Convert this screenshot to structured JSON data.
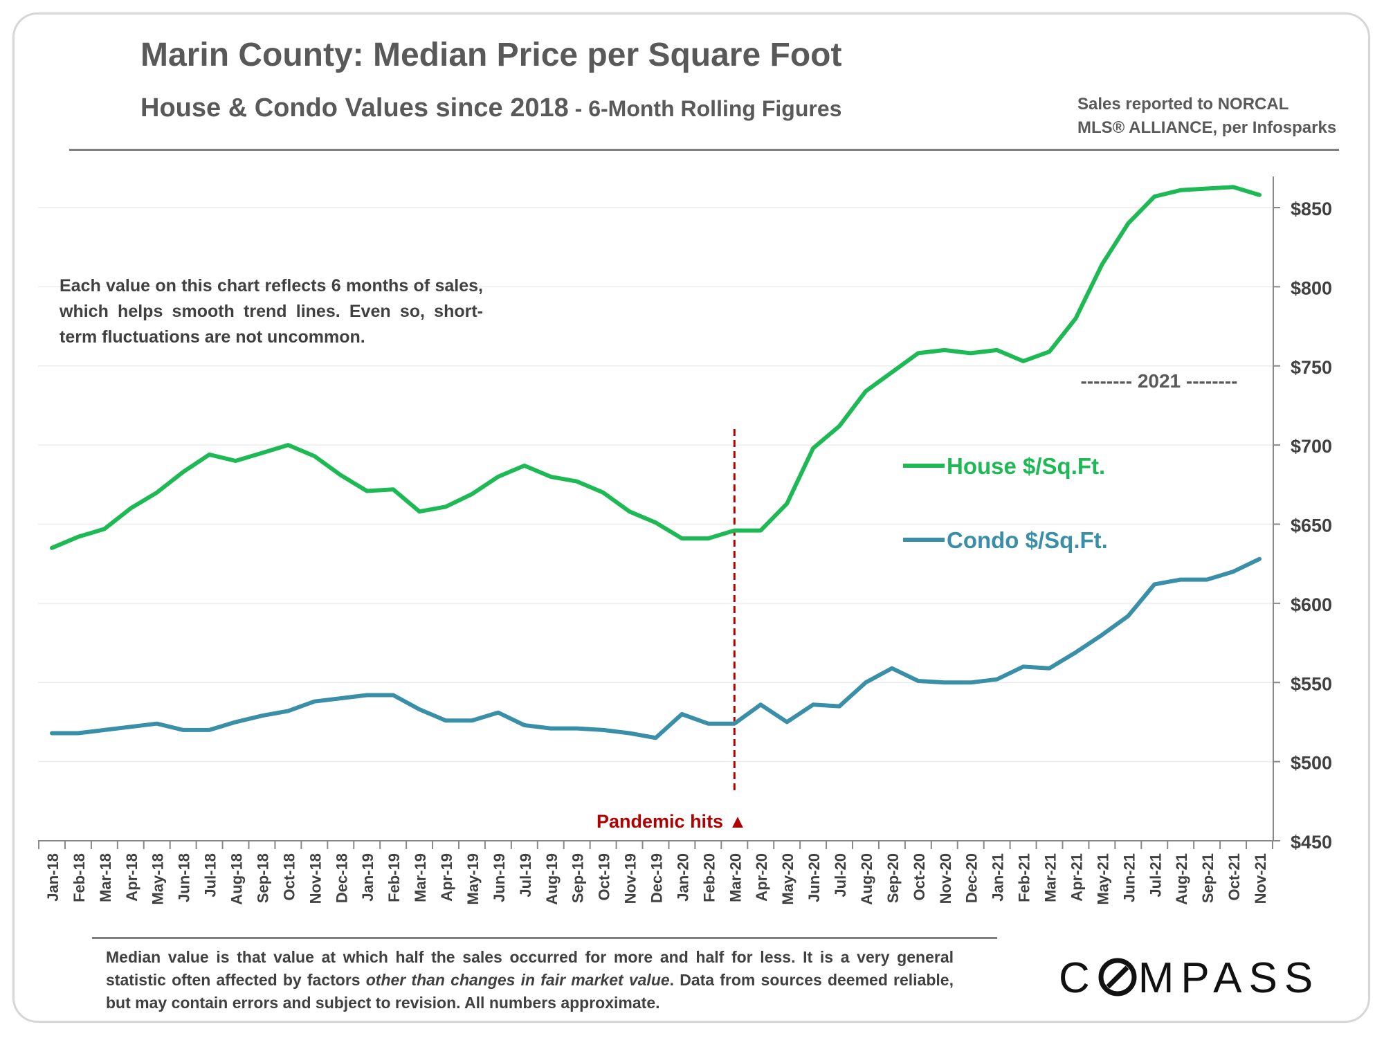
{
  "title": "Marin County: Median Price per Square Foot",
  "subtitle_main": "House & Condo Values since 2018",
  "subtitle_tail": " - 6-Month Rolling Figures",
  "source_line1": "Sales reported to NORCAL",
  "source_line2": "MLS® ALLIANCE, per Infosparks",
  "note": "Each value on this chart reflects 6 months of sales, which helps smooth trend lines. Even so, short-term fluctuations are not uncommon.",
  "disclaimer_part1": "Median value is that value at which half the sales occurred for more and half for less. It is a very general statistic often affected by factors ",
  "disclaimer_italic": "other than changes in fair market value",
  "disclaimer_part2": ". Data from sources deemed reliable, but may contain errors and subject to revision. All numbers approximate.",
  "logo": {
    "text_before": "C",
    "text_after": "MPASS",
    "mark": "compass-o-mark"
  },
  "colors": {
    "house": "#1db954",
    "condo": "#3a8fa8",
    "pandemic": "#b00000",
    "text": "#595959"
  },
  "chart_data": {
    "type": "line",
    "categories": [
      "Jan-18",
      "Feb-18",
      "Mar-18",
      "Apr-18",
      "May-18",
      "Jun-18",
      "Jul-18",
      "Aug-18",
      "Sep-18",
      "Oct-18",
      "Nov-18",
      "Dec-18",
      "Jan-19",
      "Feb-19",
      "Mar-19",
      "Apr-19",
      "May-19",
      "Jun-19",
      "Jul-19",
      "Aug-19",
      "Sep-19",
      "Oct-19",
      "Nov-19",
      "Dec-19",
      "Jan-20",
      "Feb-20",
      "Mar-20",
      "Apr-20",
      "May-20",
      "Jun-20",
      "Jul-20",
      "Aug-20",
      "Sep-20",
      "Oct-20",
      "Nov-20",
      "Dec-20",
      "Jan-21",
      "Feb-21",
      "Mar-21",
      "Apr-21",
      "May-21",
      "Jun-21",
      "Jul-21",
      "Aug-21",
      "Sep-21",
      "Oct-21",
      "Nov-21"
    ],
    "series": [
      {
        "name": "House $/Sq.Ft.",
        "color": "#1db954",
        "values": [
          635,
          642,
          647,
          660,
          670,
          683,
          694,
          690,
          695,
          700,
          693,
          681,
          671,
          672,
          658,
          661,
          669,
          680,
          687,
          680,
          677,
          670,
          658,
          651,
          641,
          641,
          646,
          646,
          663,
          698,
          712,
          734,
          746,
          758,
          760,
          758,
          760,
          753,
          759,
          780,
          814,
          840,
          857,
          861,
          862,
          863,
          858
        ]
      },
      {
        "name": "Condo $/Sq.Ft.",
        "color": "#3a8fa8",
        "values": [
          518,
          518,
          520,
          522,
          524,
          520,
          520,
          525,
          529,
          532,
          538,
          540,
          542,
          542,
          533,
          526,
          526,
          531,
          523,
          521,
          521,
          520,
          518,
          515,
          530,
          524,
          524,
          536,
          525,
          536,
          535,
          550,
          559,
          551,
          550,
          550,
          552,
          560,
          559,
          569,
          580,
          592,
          612,
          615,
          615,
          620,
          628
        ]
      }
    ],
    "y_ticks": [
      "$450",
      "$500",
      "$550",
      "$600",
      "$650",
      "$700",
      "$750",
      "$800",
      "$850"
    ],
    "ylim": [
      450,
      870
    ],
    "y_axis_side": "right",
    "grid": true,
    "legend": "right-middle",
    "annotations": {
      "pandemic_label": "Pandemic hits ▲",
      "pandemic_category": "Mar-20",
      "year_label": "-------- 2021 --------"
    }
  }
}
